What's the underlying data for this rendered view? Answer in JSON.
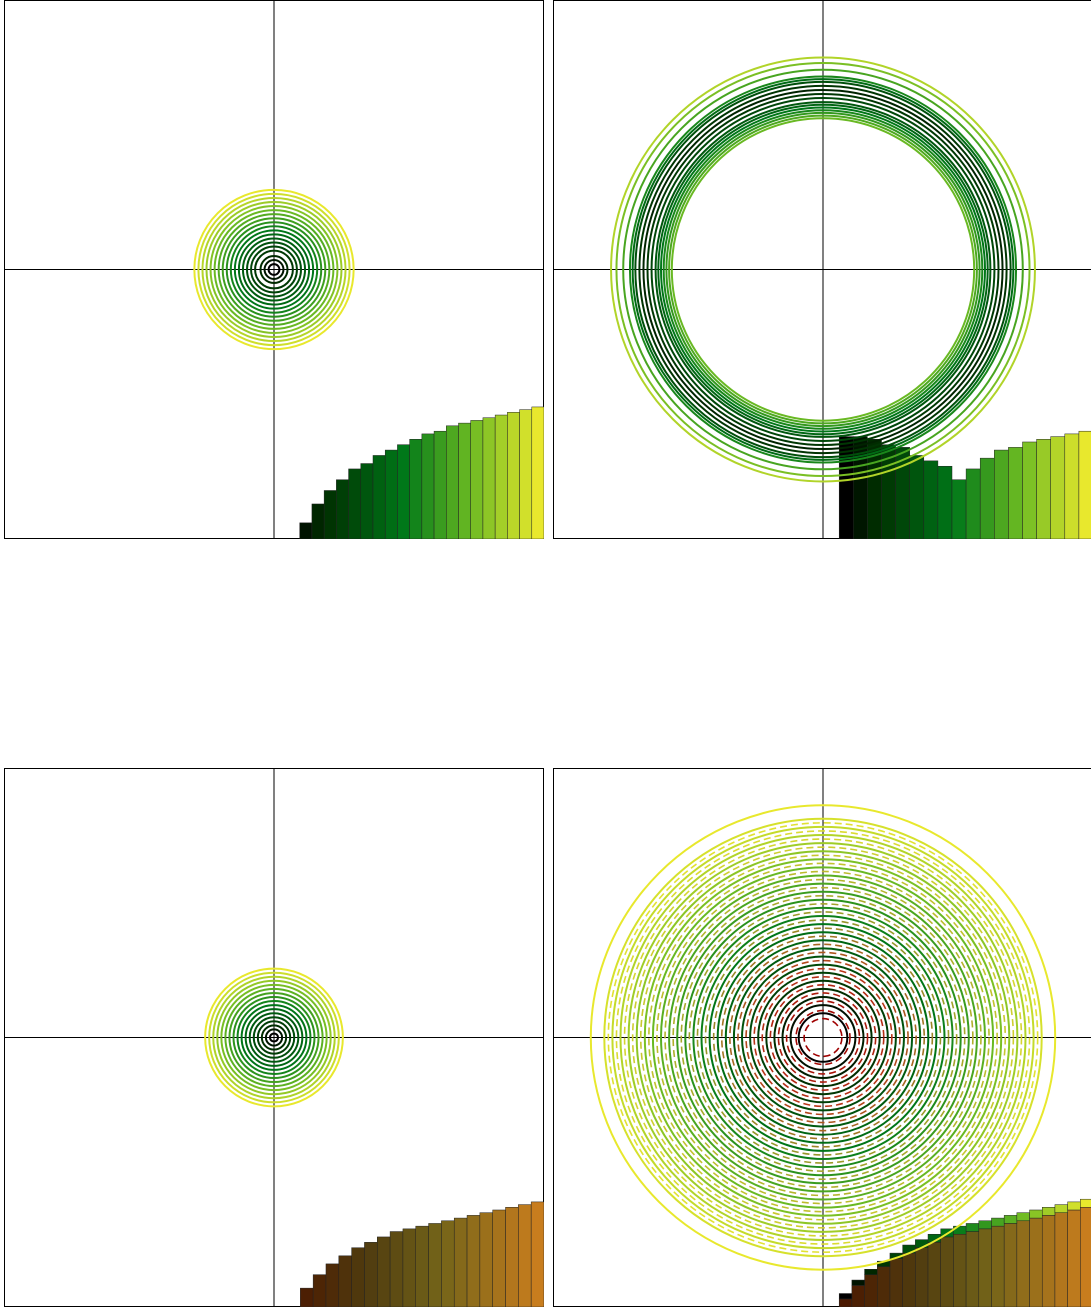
{
  "chart_data": [
    {
      "type": "circles-with-bars",
      "panel": "top-left",
      "title": "",
      "xlabel": "",
      "ylabel": "",
      "xlim": [
        -1,
        1
      ],
      "ylim": [
        -1,
        1
      ],
      "grid": false,
      "crosshair_at": [
        0,
        0
      ],
      "circles": {
        "line_style": "solid",
        "colormap": "summer-dark",
        "radii": [
          0.02,
          0.035,
          0.05,
          0.07,
          0.085,
          0.1,
          0.115,
          0.13,
          0.145,
          0.16,
          0.175,
          0.19,
          0.205,
          0.22,
          0.235,
          0.25,
          0.265,
          0.28,
          0.295
        ]
      },
      "bars": {
        "colormap": "summer-dark",
        "x_start": 0.05,
        "x_end": 1.0,
        "heights": [
          0.0,
          0.06,
          0.13,
          0.18,
          0.22,
          0.26,
          0.28,
          0.31,
          0.33,
          0.35,
          0.37,
          0.39,
          0.4,
          0.42,
          0.43,
          0.44,
          0.45,
          0.46,
          0.47,
          0.48,
          0.49
        ]
      }
    },
    {
      "type": "circles-with-bars",
      "panel": "top-right",
      "title": "",
      "xlabel": "",
      "ylabel": "",
      "xlim": [
        -1,
        1
      ],
      "ylim": [
        -1,
        1
      ],
      "grid": false,
      "crosshair_at": [
        0,
        0
      ],
      "circles": {
        "line_style": "solid",
        "colormap": "summer-dark-bump",
        "radii": [
          0.56,
          0.57,
          0.58,
          0.59,
          0.6,
          0.61,
          0.62,
          0.635,
          0.65,
          0.665,
          0.68,
          0.695,
          0.705,
          0.715,
          0.74,
          0.765,
          0.785
        ]
      },
      "bars": {
        "colormap": "summer-dark-bump",
        "x_start": 0.06,
        "x_end": 1.0,
        "heights": [
          0.38,
          0.38,
          0.37,
          0.35,
          0.34,
          0.31,
          0.29,
          0.27,
          0.22,
          0.26,
          0.3,
          0.33,
          0.34,
          0.36,
          0.37,
          0.38,
          0.39,
          0.4
        ]
      }
    },
    {
      "type": "circles-with-bars",
      "panel": "bottom-left",
      "title": "",
      "xlabel": "",
      "ylabel": "",
      "xlim": [
        -1,
        1
      ],
      "ylim": [
        -1,
        1
      ],
      "grid": false,
      "crosshair_at": [
        0,
        0
      ],
      "circles": {
        "line_style": "solid",
        "colormap": "summer-dark",
        "radii": [
          0.015,
          0.03,
          0.045,
          0.06,
          0.075,
          0.09,
          0.105,
          0.12,
          0.135,
          0.15,
          0.165,
          0.18,
          0.195,
          0.21,
          0.225,
          0.24,
          0.255
        ]
      },
      "bars": {
        "colormap": "brown-amber",
        "x_start": 0.05,
        "x_end": 1.0,
        "heights": [
          0.0,
          0.07,
          0.12,
          0.16,
          0.19,
          0.22,
          0.24,
          0.26,
          0.28,
          0.29,
          0.3,
          0.31,
          0.32,
          0.33,
          0.34,
          0.35,
          0.36,
          0.37,
          0.38,
          0.39
        ]
      }
    },
    {
      "type": "circles-with-bars",
      "panel": "bottom-right",
      "title": "",
      "xlabel": "",
      "ylabel": "",
      "xlim": [
        -1,
        1
      ],
      "ylim": [
        -1,
        1
      ],
      "grid": false,
      "crosshair_at": [
        0,
        0
      ],
      "circles": {
        "line_style": "solid",
        "colormap": "summer-dark",
        "radii": [
          0.09,
          0.12,
          0.15,
          0.18,
          0.21,
          0.24,
          0.27,
          0.3,
          0.33,
          0.36,
          0.39,
          0.42,
          0.45,
          0.48,
          0.51,
          0.54,
          0.57,
          0.6,
          0.63,
          0.66,
          0.69,
          0.72,
          0.75,
          0.78,
          0.81,
          0.86
        ]
      },
      "dashed_circles": {
        "line_style": "dashed",
        "colormap": "red-to-yellow",
        "radii": [
          0.07,
          0.1,
          0.135,
          0.165,
          0.195,
          0.225,
          0.255,
          0.285,
          0.315,
          0.345,
          0.375,
          0.405,
          0.435,
          0.465,
          0.495,
          0.525,
          0.555,
          0.585,
          0.615,
          0.645,
          0.675,
          0.705,
          0.735,
          0.765,
          0.795
        ]
      },
      "bars": {
        "colormap": "brown-amber",
        "x_start": 0.06,
        "x_end": 1.0,
        "heights": [
          0.03,
          0.08,
          0.12,
          0.15,
          0.18,
          0.2,
          0.22,
          0.24,
          0.26,
          0.27,
          0.28,
          0.29,
          0.3,
          0.31,
          0.32,
          0.33,
          0.34,
          0.35,
          0.36,
          0.37
        ]
      },
      "overlay_bars": {
        "colormap": "summer-dark",
        "x_start": 0.06,
        "x_end": 1.0,
        "heights": [
          0.05,
          0.1,
          0.14,
          0.17,
          0.2,
          0.23,
          0.25,
          0.27,
          0.29,
          0.3,
          0.31,
          0.32,
          0.33,
          0.34,
          0.35,
          0.36,
          0.37,
          0.38,
          0.39,
          0.4
        ]
      }
    }
  ]
}
